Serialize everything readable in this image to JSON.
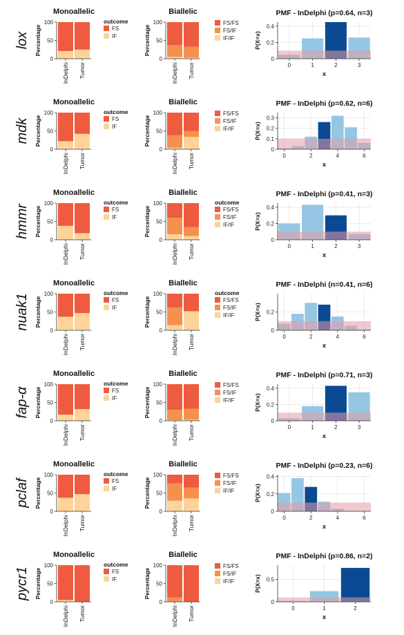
{
  "colors": {
    "fs": "#EE5B3F",
    "if": "#FDD39A",
    "fsfs": "#EE5B3F",
    "fsif": "#F6904F",
    "ifif": "#FDD39A",
    "pmf_light": "#95C6E3",
    "pmf_dark": "#0B4A93",
    "background_band": "#E49CA5",
    "grid": "#DDDDDD",
    "axis": "#333333"
  },
  "labels": {
    "mono_title": "Monoallelic",
    "bi_title": "Biallelic",
    "ylabel": "Percentage",
    "legend_title": "outcome",
    "pmf_ylabel": "P(X=x)",
    "pmf_xlabel": "x",
    "mono_legend": [
      "FS",
      "IF"
    ],
    "bi_legend": [
      "FS/FS",
      "FS/IF",
      "IF/IF"
    ],
    "categories": [
      "InDelphi",
      "Tumor"
    ],
    "yticks": [
      "100",
      "50",
      "0"
    ]
  },
  "chart_data": [
    {
      "gene": "lox",
      "mono": {
        "type": "bar",
        "categories": [
          "InDelphi",
          "Tumor"
        ],
        "series": [
          {
            "name": "FS",
            "values": [
              79,
              75
            ]
          },
          {
            "name": "IF",
            "values": [
              21,
              25
            ]
          }
        ],
        "ylim": [
          0,
          100
        ]
      },
      "bi": {
        "type": "bar",
        "categories": [
          "InDelphi",
          "Tumor"
        ],
        "series": [
          {
            "name": "FS/FS",
            "values": [
              63,
              67
            ]
          },
          {
            "name": "FS/IF",
            "values": [
              32,
              30
            ]
          },
          {
            "name": "IF/IF",
            "values": [
              5,
              3
            ]
          }
        ],
        "ylim": [
          0,
          100
        ]
      },
      "pmf": {
        "type": "bar",
        "title": "PMF - InDelphi (p=0.64, n=3)",
        "x": [
          0,
          1,
          2,
          3
        ],
        "values": [
          0.05,
          0.25,
          0.45,
          0.26
        ],
        "baseline": 0.1,
        "highlight": 2,
        "ylim": [
          0,
          0.45
        ],
        "yticks": [
          0,
          0.2,
          0.4
        ],
        "xticks": [
          0,
          1,
          2,
          3
        ],
        "hasLegend": false
      }
    },
    {
      "gene": "mdk",
      "mono": {
        "type": "bar",
        "categories": [
          "InDelphi",
          "Tumor"
        ],
        "series": [
          {
            "name": "FS",
            "values": [
              78,
              58
            ]
          },
          {
            "name": "IF",
            "values": [
              22,
              42
            ]
          }
        ],
        "ylim": [
          0,
          100
        ]
      },
      "bi": {
        "type": "bar",
        "categories": [
          "InDelphi",
          "Tumor"
        ],
        "series": [
          {
            "name": "FS/FS",
            "values": [
              62,
              50
            ]
          },
          {
            "name": "FS/IF",
            "values": [
              34,
              16
            ]
          },
          {
            "name": "IF/IF",
            "values": [
              4,
              34
            ]
          }
        ],
        "ylim": [
          0,
          100
        ]
      },
      "pmf": {
        "type": "bar",
        "title": "PMF - InDelphi (p=0.62, n=6)",
        "x": [
          0,
          1,
          2,
          3,
          4,
          5,
          6
        ],
        "values": [
          0.01,
          0.03,
          0.12,
          0.26,
          0.32,
          0.21,
          0.06
        ],
        "baseline": 0.1,
        "highlight": 3,
        "ylim": [
          0,
          0.35
        ],
        "yticks": [
          0,
          0.1,
          0.2,
          0.3
        ],
        "xticks": [
          0,
          2,
          4,
          6
        ],
        "hasLegend": false
      }
    },
    {
      "gene": "hmmr",
      "mono": {
        "type": "bar",
        "categories": [
          "InDelphi",
          "Tumor"
        ],
        "series": [
          {
            "name": "FS",
            "values": [
              62,
              82
            ]
          },
          {
            "name": "IF",
            "values": [
              38,
              18
            ]
          }
        ],
        "ylim": [
          0,
          100
        ]
      },
      "bi": {
        "type": "bar",
        "categories": [
          "InDelphi",
          "Tumor"
        ],
        "series": [
          {
            "name": "FS/FS",
            "values": [
              40,
              65
            ]
          },
          {
            "name": "FS/IF",
            "values": [
              45,
              25
            ]
          },
          {
            "name": "IF/IF",
            "values": [
              15,
              10
            ]
          }
        ],
        "ylim": [
          0,
          100
        ]
      },
      "pmf": {
        "type": "bar",
        "title": "PMF - InDelphi (p=0.41, n=3)",
        "x": [
          0,
          1,
          2,
          3
        ],
        "values": [
          0.2,
          0.43,
          0.3,
          0.07
        ],
        "baseline": 0.1,
        "highlight": 2,
        "ylim": [
          0,
          0.45
        ],
        "yticks": [
          0,
          0.2,
          0.4
        ],
        "xticks": [
          0,
          1,
          2,
          3
        ],
        "hasLegend": true
      }
    },
    {
      "gene": "nuak1",
      "mono": {
        "type": "bar",
        "categories": [
          "InDelphi",
          "Tumor"
        ],
        "series": [
          {
            "name": "FS",
            "values": [
              63,
              53
            ]
          },
          {
            "name": "IF",
            "values": [
              37,
              47
            ]
          }
        ],
        "ylim": [
          0,
          100
        ]
      },
      "bi": {
        "type": "bar",
        "categories": [
          "InDelphi",
          "Tumor"
        ],
        "series": [
          {
            "name": "FS/FS",
            "values": [
              38,
              48
            ]
          },
          {
            "name": "FS/IF",
            "values": [
              48,
              0
            ]
          },
          {
            "name": "IF/IF",
            "values": [
              14,
              52
            ]
          }
        ],
        "ylim": [
          0,
          100
        ]
      },
      "pmf": {
        "type": "bar",
        "title": "PMF - InDelphi (n=0.41, n=6)",
        "x": [
          0,
          1,
          2,
          3,
          4,
          5,
          6
        ],
        "values": [
          0.07,
          0.18,
          0.3,
          0.28,
          0.15,
          0.05,
          0.01
        ],
        "baseline": 0.1,
        "highlight": 3,
        "ylim": [
          0,
          0.4
        ],
        "yticks": [
          0,
          0.2
        ],
        "xticks": [
          0,
          2,
          4,
          6
        ],
        "hasLegend": true
      }
    },
    {
      "gene": "fap-α",
      "mono": {
        "type": "bar",
        "categories": [
          "InDelphi",
          "Tumor"
        ],
        "series": [
          {
            "name": "FS",
            "values": [
              83,
              68
            ]
          },
          {
            "name": "IF",
            "values": [
              17,
              32
            ]
          }
        ],
        "ylim": [
          0,
          100
        ]
      },
      "bi": {
        "type": "bar",
        "categories": [
          "InDelphi",
          "Tumor"
        ],
        "series": [
          {
            "name": "FS/FS",
            "values": [
              70,
              67
            ]
          },
          {
            "name": "FS/IF",
            "values": [
              28,
              30
            ]
          },
          {
            "name": "IF/IF",
            "values": [
              2,
              3
            ]
          }
        ],
        "ylim": [
          0,
          100
        ]
      },
      "pmf": {
        "type": "bar",
        "title": "PMF - InDelphi (p=0.71, n=3)",
        "x": [
          0,
          1,
          2,
          3
        ],
        "values": [
          0.03,
          0.18,
          0.43,
          0.35
        ],
        "baseline": 0.1,
        "highlight": 2,
        "ylim": [
          0,
          0.45
        ],
        "yticks": [
          0,
          0.2,
          0.4
        ],
        "xticks": [
          0,
          1,
          2,
          3
        ],
        "hasLegend": false
      }
    },
    {
      "gene": "pclaf",
      "mono": {
        "type": "bar",
        "categories": [
          "InDelphi",
          "Tumor"
        ],
        "series": [
          {
            "name": "FS",
            "values": [
              63,
              53
            ]
          },
          {
            "name": "IF",
            "values": [
              37,
              47
            ]
          }
        ],
        "ylim": [
          0,
          100
        ]
      },
      "bi": {
        "type": "bar",
        "categories": [
          "InDelphi",
          "Tumor"
        ],
        "series": [
          {
            "name": "FS/FS",
            "values": [
              24,
              35
            ]
          },
          {
            "name": "FS/IF",
            "values": [
              47,
              30
            ]
          },
          {
            "name": "IF/IF",
            "values": [
              29,
              35
            ]
          }
        ],
        "ylim": [
          0,
          100
        ]
      },
      "pmf": {
        "type": "bar",
        "title": "PMF - InDelphi (p=0.23, n=6)",
        "x": [
          0,
          1,
          2,
          3,
          4,
          5,
          6
        ],
        "values": [
          0.21,
          0.38,
          0.28,
          0.11,
          0.03,
          0.005,
          0.0
        ],
        "baseline": 0.1,
        "highlight": 2,
        "ylim": [
          0,
          0.42
        ],
        "yticks": [
          0,
          0.2,
          0.4
        ],
        "xticks": [
          0,
          2,
          4,
          6
        ],
        "hasLegend": false
      }
    },
    {
      "gene": "pycr1",
      "mono": {
        "type": "bar",
        "categories": [
          "InDelphi",
          "Tumor"
        ],
        "series": [
          {
            "name": "FS",
            "values": [
              95,
              100
            ]
          },
          {
            "name": "IF",
            "values": [
              5,
              0
            ]
          }
        ],
        "ylim": [
          0,
          100
        ]
      },
      "bi": {
        "type": "bar",
        "categories": [
          "InDelphi",
          "Tumor"
        ],
        "series": [
          {
            "name": "FS/FS",
            "values": [
              88,
              100
            ]
          },
          {
            "name": "FS/IF",
            "values": [
              12,
              0
            ]
          },
          {
            "name": "IF/IF",
            "values": [
              0,
              0
            ]
          }
        ],
        "ylim": [
          0,
          100
        ]
      },
      "pmf": {
        "type": "bar",
        "title": "PMF - InDelphi (p=0.86, n=2)",
        "x": [
          0,
          1,
          2
        ],
        "values": [
          0.02,
          0.24,
          0.76
        ],
        "baseline": 0.1,
        "highlight": 2,
        "ylim": [
          0,
          0.82
        ],
        "yticks": [
          0,
          0.5
        ],
        "xticks": [
          0,
          1,
          2
        ],
        "hasLegend": false
      }
    }
  ]
}
